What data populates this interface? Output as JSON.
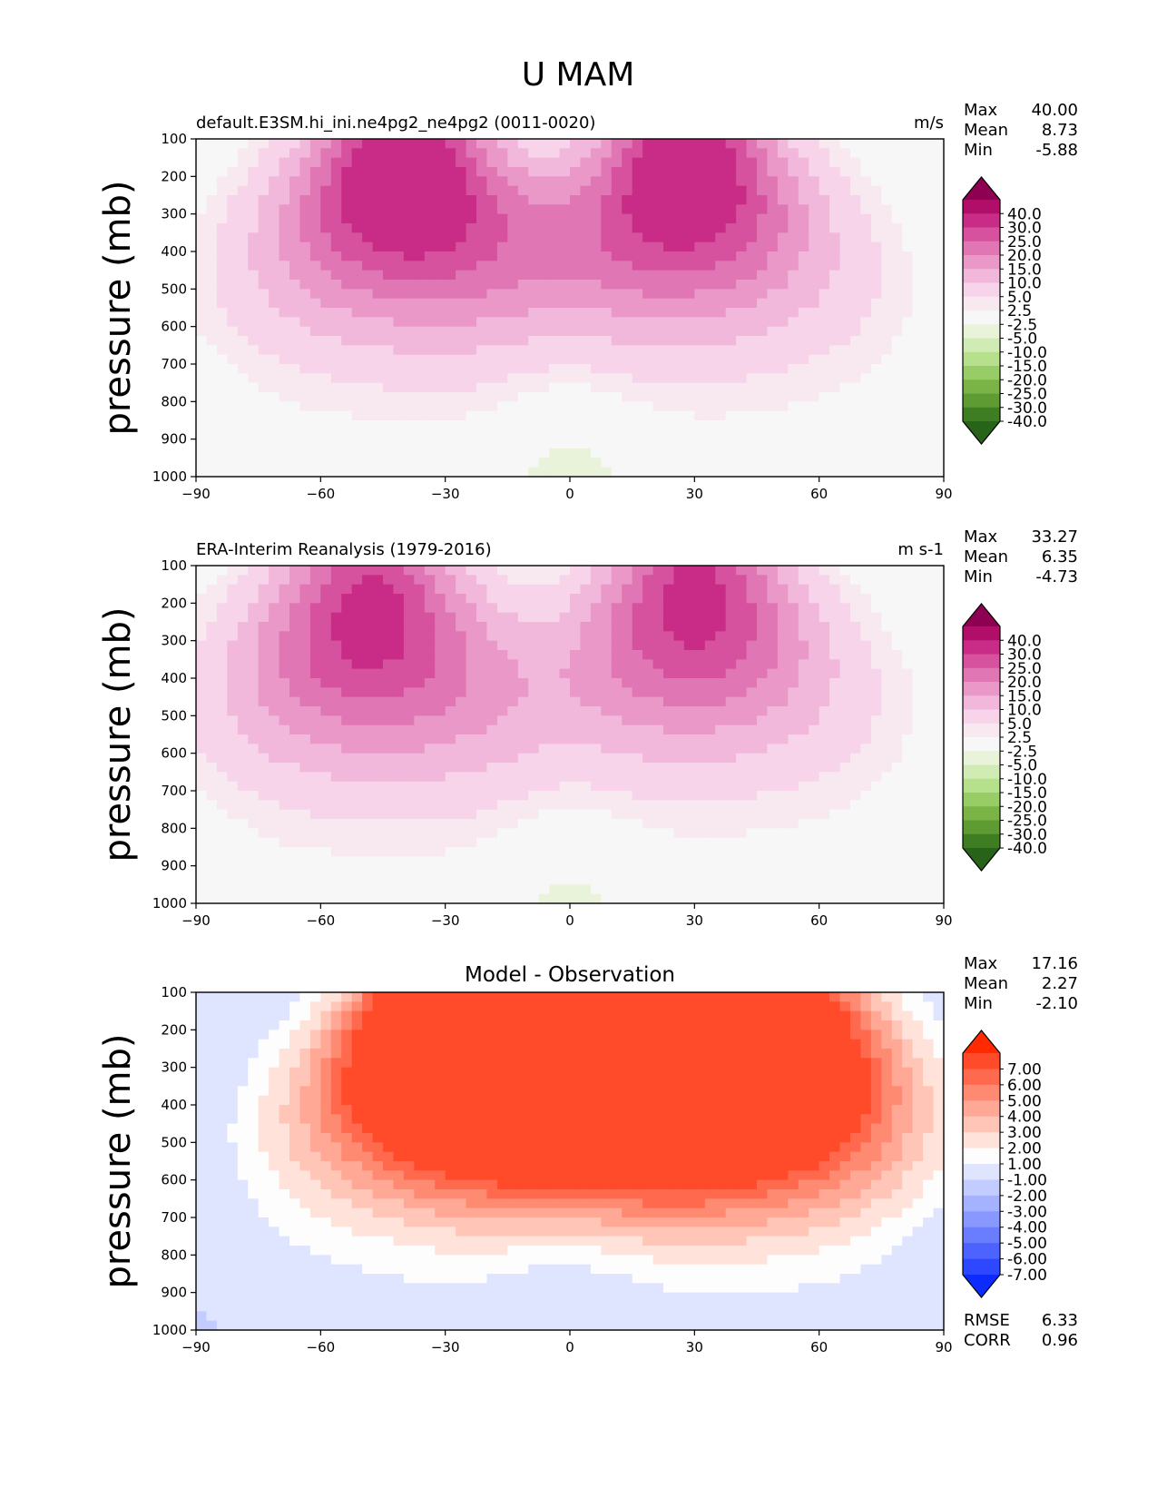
{
  "suptitle": "U MAM",
  "chart_data": [
    {
      "type": "heatmap",
      "title_left": "default.E3SM.hi_ini.ne4pg2_ne4pg2 (0011-0020)",
      "title_center": "",
      "units": "m/s",
      "ylabel": "pressure (mb)",
      "xlabel": "",
      "xlim": [
        -90,
        90
      ],
      "ylim": [
        1000,
        100
      ],
      "xticks": [
        "−90",
        "−60",
        "−30",
        "0",
        "30",
        "60",
        "90"
      ],
      "yticks": [
        "100",
        "200",
        "300",
        "400",
        "500",
        "600",
        "700",
        "800",
        "900",
        "1000"
      ],
      "stats": [
        {
          "label": "Max",
          "value": "40.00"
        },
        {
          "label": "Mean",
          "value": "8.73"
        },
        {
          "label": "Min",
          "value": "-5.88"
        }
      ],
      "colorbar": {
        "ticks": [
          "40.0",
          "30.0",
          "25.0",
          "20.0",
          "15.0",
          "10.0",
          "5.0",
          "2.5",
          "-2.5",
          "-5.0",
          "-10.0",
          "-15.0",
          "-20.0",
          "-25.0",
          "-30.0",
          "-40.0"
        ],
        "colors": [
          "#8e0152",
          "#b10e6a",
          "#c92c86",
          "#d6519e",
          "#e176b4",
          "#e998c8",
          "#f1b8db",
          "#f7d4e9",
          "#f8e9f1",
          "#f7f7f7",
          "#e8f3da",
          "#d0ecb4",
          "#b6e08c",
          "#98cc67",
          "#7bb446",
          "#5e9b32",
          "#3f7d22",
          "#276419"
        ]
      },
      "jets": [
        {
          "lat": -40,
          "plev": 200,
          "peak": 40
        },
        {
          "lat": 28,
          "plev": 200,
          "peak": 38
        }
      ],
      "tropical_easterly": -4.5,
      "polar_easterly": -2,
      "extra_rows": []
    },
    {
      "type": "heatmap",
      "title_left": "ERA-Interim Reanalysis (1979-2016)",
      "title_center": "",
      "units": "m s-1",
      "ylabel": "pressure (mb)",
      "xlabel": "",
      "xlim": [
        -90,
        90
      ],
      "ylim": [
        1000,
        100
      ],
      "xticks": [
        "−90",
        "−60",
        "−30",
        "0",
        "30",
        "60",
        "90"
      ],
      "yticks": [
        "100",
        "200",
        "300",
        "400",
        "500",
        "600",
        "700",
        "800",
        "900",
        "1000"
      ],
      "stats": [
        {
          "label": "Max",
          "value": "33.27"
        },
        {
          "label": "Mean",
          "value": "6.35"
        },
        {
          "label": "Min",
          "value": "-4.73"
        }
      ],
      "colorbar": {
        "ticks": [
          "40.0",
          "30.0",
          "25.0",
          "20.0",
          "15.0",
          "10.0",
          "5.0",
          "2.5",
          "-2.5",
          "-5.0",
          "-10.0",
          "-15.0",
          "-20.0",
          "-25.0",
          "-30.0",
          "-40.0"
        ],
        "colors": [
          "#8e0152",
          "#b10e6a",
          "#c92c86",
          "#d6519e",
          "#e176b4",
          "#e998c8",
          "#f1b8db",
          "#f7d4e9",
          "#f8e9f1",
          "#f7f7f7",
          "#e8f3da",
          "#d0ecb4",
          "#b6e08c",
          "#98cc67",
          "#7bb446",
          "#5e9b32",
          "#3f7d22",
          "#276419"
        ]
      },
      "jets": [
        {
          "lat": -48,
          "plev": 250,
          "peak": 33
        },
        {
          "lat": 30,
          "plev": 200,
          "peak": 33
        }
      ],
      "tropical_easterly": -4,
      "polar_easterly": -2,
      "extra_rows": []
    },
    {
      "type": "heatmap",
      "title_left": "",
      "title_center": "Model - Observation",
      "units": "",
      "ylabel": "pressure (mb)",
      "xlabel": "",
      "xlim": [
        -90,
        90
      ],
      "ylim": [
        1000,
        100
      ],
      "xticks": [
        "−90",
        "−60",
        "−30",
        "0",
        "30",
        "60",
        "90"
      ],
      "yticks": [
        "100",
        "200",
        "300",
        "400",
        "500",
        "600",
        "700",
        "800",
        "900",
        "1000"
      ],
      "stats": [
        {
          "label": "Max",
          "value": "17.16"
        },
        {
          "label": "Mean",
          "value": "2.27"
        },
        {
          "label": "Min",
          "value": "-2.10"
        }
      ],
      "colorbar": {
        "ticks": [
          "7.00",
          "6.00",
          "5.00",
          "4.00",
          "3.00",
          "2.00",
          "1.00",
          "-1.00",
          "-2.00",
          "-3.00",
          "-4.00",
          "-5.00",
          "-6.00",
          "-7.00"
        ],
        "colors": [
          "#ff2a00",
          "#ff4b2a",
          "#ff6a4f",
          "#ff8a72",
          "#ffa896",
          "#ffc6b8",
          "#ffe2da",
          "#fdfdfd",
          "#dfe4ff",
          "#c3ccff",
          "#a5b2ff",
          "#8898ff",
          "#6a7dff",
          "#4c63ff",
          "#2e48ff",
          "#0c2bff"
        ]
      },
      "jets": [
        {
          "lat": -28,
          "plev": 200,
          "peak": 15
        },
        {
          "lat": 15,
          "plev": 200,
          "peak": 14
        },
        {
          "lat": 52,
          "plev": 250,
          "peak": 10
        }
      ],
      "tropical_easterly": -1.2,
      "polar_easterly": -1.2,
      "extra_rows": [
        {
          "label": "RMSE",
          "value": "6.33"
        },
        {
          "label": "CORR",
          "value": "0.96"
        }
      ]
    }
  ]
}
